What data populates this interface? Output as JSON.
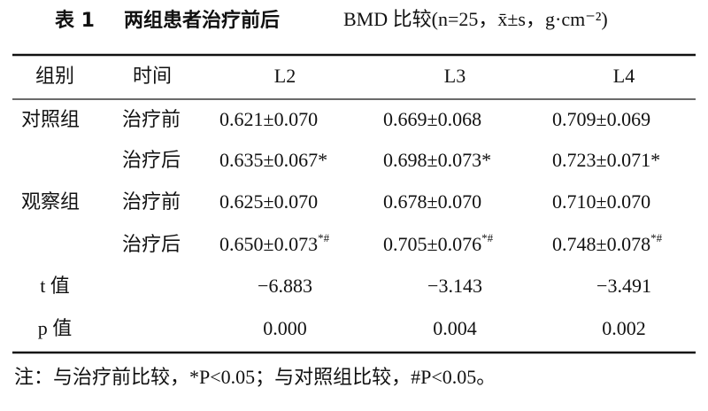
{
  "title": {
    "label": "表 1",
    "text": "两组患者治疗前后",
    "suffix": "BMD 比较(n=25，x̄±s，g·cm⁻²)"
  },
  "table": {
    "header": [
      "组别",
      "时间",
      "L2",
      "L3",
      "L4"
    ],
    "rows": [
      {
        "group": "对照组",
        "time": "治疗前",
        "cells": [
          "0.621±0.070",
          "0.669±0.068",
          "0.709±0.069"
        ]
      },
      {
        "time": "治疗后",
        "cells": [
          "0.635±0.067*",
          "0.698±0.073*",
          "0.723±0.071*"
        ]
      },
      {
        "group": "观察组",
        "time": "治疗前",
        "cells": [
          "0.625±0.070",
          "0.678±0.070",
          "0.710±0.070"
        ]
      },
      {
        "time": "治疗后",
        "cells": [
          {
            "text": "0.650±0.073",
            "sup": "*#"
          },
          {
            "text": "0.705±0.076",
            "sup": "*#"
          },
          {
            "text": "0.748±0.078",
            "sup": "*#"
          }
        ]
      },
      {
        "group": "t 值",
        "stat": true,
        "cells": [
          "−6.883",
          "−3.143",
          "−3.491"
        ]
      },
      {
        "group": "p 值",
        "stat": true,
        "cells": [
          "0.000",
          "0.004",
          "0.002"
        ]
      }
    ]
  },
  "note": "注：与治疗前比较，*P<0.05；与对照组比较，#P<0.05。"
}
